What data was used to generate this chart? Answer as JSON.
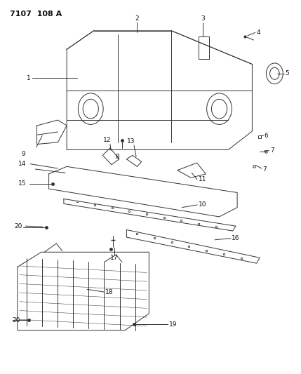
{
  "title": "7107  108 A",
  "bg_color": "#ffffff",
  "line_color": "#333333",
  "text_color": "#111111",
  "fig_width": 4.29,
  "fig_height": 5.33,
  "dpi": 100
}
